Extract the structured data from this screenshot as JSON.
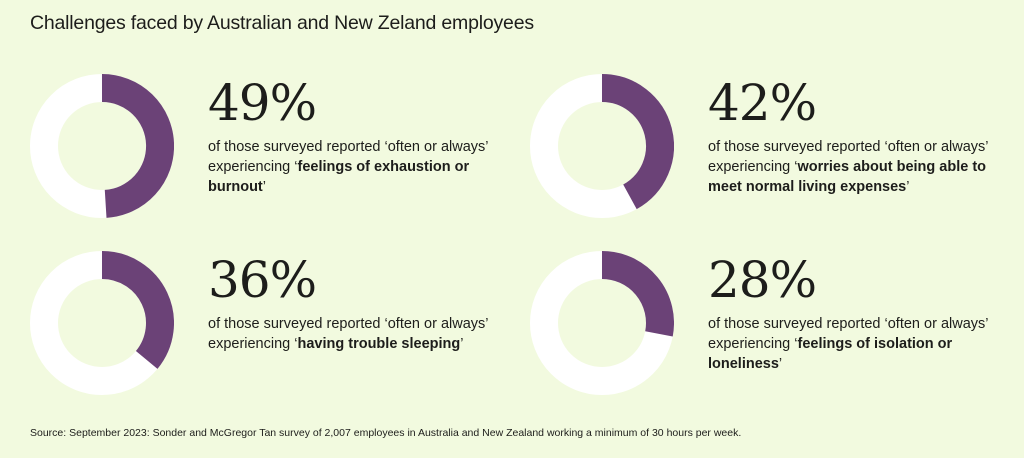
{
  "title": "Challenges faced by Australian and New Zeland employees",
  "colors": {
    "background": "#f2fadf",
    "segment": "#6b4277",
    "track": "#ffffff",
    "text": "#1d1d1b"
  },
  "stats": [
    {
      "percent_label": "49%",
      "prefix": "of those surveyed reported ‘often or always’ experiencing ‘",
      "highlight": "feelings of exhaustion or burnout",
      "suffix": "’"
    },
    {
      "percent_label": "42%",
      "prefix": "of those surveyed reported ‘often or always’ experiencing ‘",
      "highlight": "worries about being able to meet normal living expenses",
      "suffix": "’"
    },
    {
      "percent_label": "36%",
      "prefix": "of those surveyed reported ‘often or always’ experiencing ‘",
      "highlight": "having trouble sleeping",
      "suffix": "’"
    },
    {
      "percent_label": "28%",
      "prefix": "of those surveyed reported ‘often or always’ experiencing ‘",
      "highlight": "feelings of isolation or loneliness",
      "suffix": "’"
    }
  ],
  "source": "Source: September 2023: Sonder and McGregor Tan survey of 2,007 employees in Australia and New Zealand working a minimum of 30 hours per week.",
  "chart_data": {
    "type": "pie",
    "variant": "donut",
    "categories": [
      "feelings of exhaustion or burnout",
      "worries about being able to meet normal living expenses",
      "having trouble sleeping",
      "feelings of isolation or loneliness"
    ],
    "values": [
      49,
      42,
      36,
      28
    ],
    "unit": "%",
    "title": "Challenges faced by Australian and New Zeland employees"
  }
}
